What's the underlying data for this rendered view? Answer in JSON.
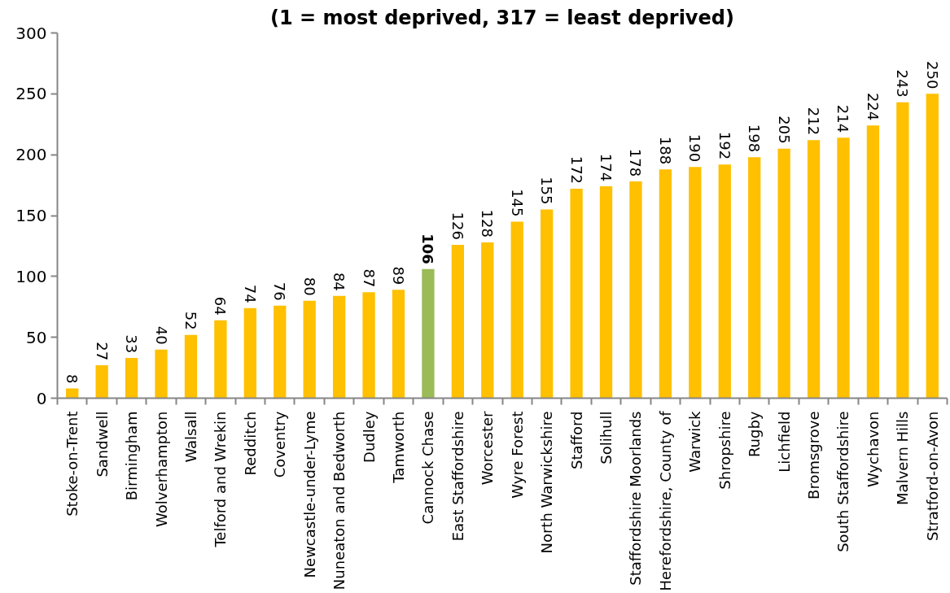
{
  "chart_data": {
    "type": "bar",
    "title": "(1 = most deprived, 317 = least deprived)",
    "categories": [
      "Stoke-on-Trent",
      "Sandwell",
      "Birmingham",
      "Wolverhampton",
      "Walsall",
      "Telford and Wrekin",
      "Redditch",
      "Coventry",
      "Newcastle-under-Lyme",
      "Nuneaton and Bedworth",
      "Dudley",
      "Tamworth",
      "Cannock Chase",
      "East Staffordshire",
      "Worcester",
      "Wyre Forest",
      "North Warwickshire",
      "Stafford",
      "Solihull",
      "Staffordshire Moorlands",
      "Herefordshire, County of",
      "Warwick",
      "Shropshire",
      "Rugby",
      "Lichfield",
      "Bromsgrove",
      "South Staffordshire",
      "Wychavon",
      "Malvern Hills",
      "Stratford-on-Avon"
    ],
    "values": [
      8,
      27,
      33,
      40,
      52,
      64,
      74,
      76,
      80,
      84,
      87,
      89,
      106,
      126,
      128,
      145,
      155,
      172,
      174,
      178,
      188,
      190,
      192,
      198,
      205,
      212,
      214,
      224,
      243,
      250
    ],
    "colors": [
      "#ffc000",
      "#ffc000",
      "#ffc000",
      "#ffc000",
      "#ffc000",
      "#ffc000",
      "#ffc000",
      "#ffc000",
      "#ffc000",
      "#ffc000",
      "#ffc000",
      "#ffc000",
      "#9bbb59",
      "#ffc000",
      "#ffc000",
      "#ffc000",
      "#ffc000",
      "#ffc000",
      "#ffc000",
      "#ffc000",
      "#ffc000",
      "#ffc000",
      "#ffc000",
      "#ffc000",
      "#ffc000",
      "#ffc000",
      "#ffc000",
      "#ffc000",
      "#ffc000",
      "#ffc000"
    ],
    "ylim": [
      0,
      300
    ],
    "yticks": [
      0,
      50,
      100,
      150,
      200,
      250,
      300
    ],
    "data_labels": true
  }
}
